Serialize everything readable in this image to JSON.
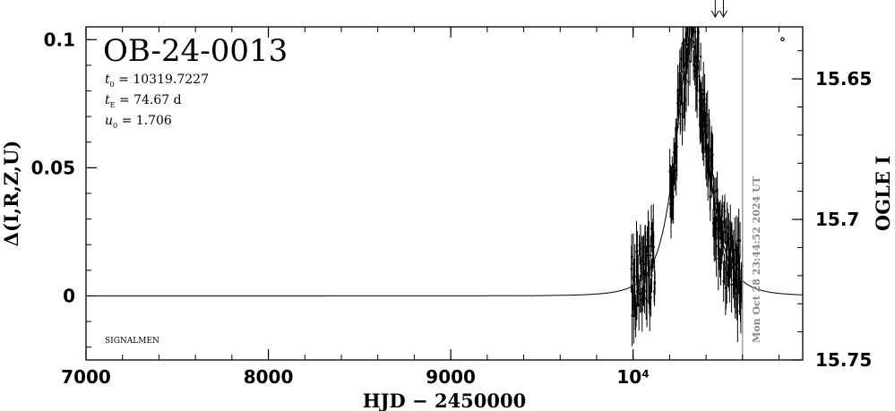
{
  "chart_data": {
    "type": "scatter",
    "title": "OB-24-0013",
    "params": [
      {
        "sym": "t",
        "sub": "0",
        "eq": " = 10319.7227"
      },
      {
        "sym": "t",
        "sub": "E",
        "eq": " = 74.67 d"
      },
      {
        "sym": "u",
        "sub": "0",
        "eq": " = 1.706"
      }
    ],
    "signature": "SIGNALMEN",
    "xlabel": "HJD − 2450000",
    "ylabel_left": "Δ(I,R,Z,U)",
    "ylabel_right": "OGLE I",
    "date_stamp": "Mon Oct 28 23:44:52 2024 UT",
    "xlim": [
      7000,
      10930
    ],
    "ylim_left": [
      -0.025,
      0.105
    ],
    "ylim_right": [
      15.75,
      15.6315
    ],
    "x_ticks": [
      {
        "value": 7000,
        "label": "7000"
      },
      {
        "value": 8000,
        "label": "8000"
      },
      {
        "value": 9000,
        "label": "9000"
      },
      {
        "value": 10000,
        "label": "10⁴"
      }
    ],
    "y_ticks_left": [
      {
        "value": 0.1,
        "label": "0.1"
      },
      {
        "value": 0.05,
        "label": "0.05"
      },
      {
        "value": 0,
        "label": "0"
      }
    ],
    "y_ticks_right": [
      {
        "value": 15.65,
        "label": "15.65"
      },
      {
        "value": 15.7,
        "label": "15.7"
      },
      {
        "value": 15.75,
        "label": "15.75"
      }
    ],
    "model": {
      "t0": 10319.7227,
      "tE": 74.67,
      "peak_delta": 0.1,
      "baseline": 0
    },
    "current_time": 10600,
    "arrows_at": [
      10450,
      10495
    ],
    "colors": {
      "data": "#000000",
      "model": "#000000",
      "now_line": "#888888",
      "stamp": "#888888"
    }
  }
}
